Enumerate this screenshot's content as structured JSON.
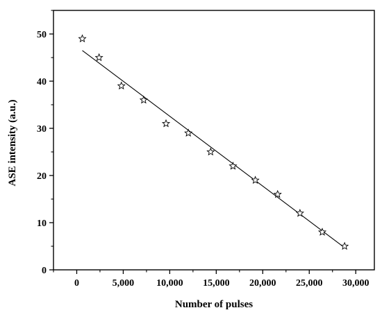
{
  "chart_data": {
    "type": "scatter",
    "title": "",
    "xlabel": "Number of pulses",
    "ylabel": "ASE intensity (a.u.)",
    "xlim": [
      -2500,
      32000
    ],
    "ylim": [
      0,
      55
    ],
    "x_ticks": [
      0,
      5000,
      10000,
      15000,
      20000,
      25000,
      30000
    ],
    "x_tick_labels": [
      "0",
      "5,000",
      "10,000",
      "15,000",
      "20,000",
      "25,000",
      "30,000"
    ],
    "y_ticks": [
      0,
      10,
      20,
      30,
      40,
      50
    ],
    "y_tick_labels": [
      "0",
      "10",
      "20",
      "30",
      "40",
      "50"
    ],
    "grid": false,
    "legend": false,
    "series": [
      {
        "marker": "star",
        "x": [
          600,
          2400,
          4800,
          7200,
          9600,
          12000,
          14400,
          16800,
          19200,
          21600,
          24000,
          26400,
          28800
        ],
        "y": [
          49,
          45,
          39,
          36,
          31,
          29,
          25,
          22,
          19,
          16,
          12,
          8,
          5
        ]
      }
    ],
    "fit_line": {
      "x": [
        600,
        28800
      ],
      "y": [
        46.5,
        4.7
      ]
    },
    "colors": {
      "marker_stroke": "#000000",
      "line": "#000000",
      "axis": "#000000"
    }
  }
}
